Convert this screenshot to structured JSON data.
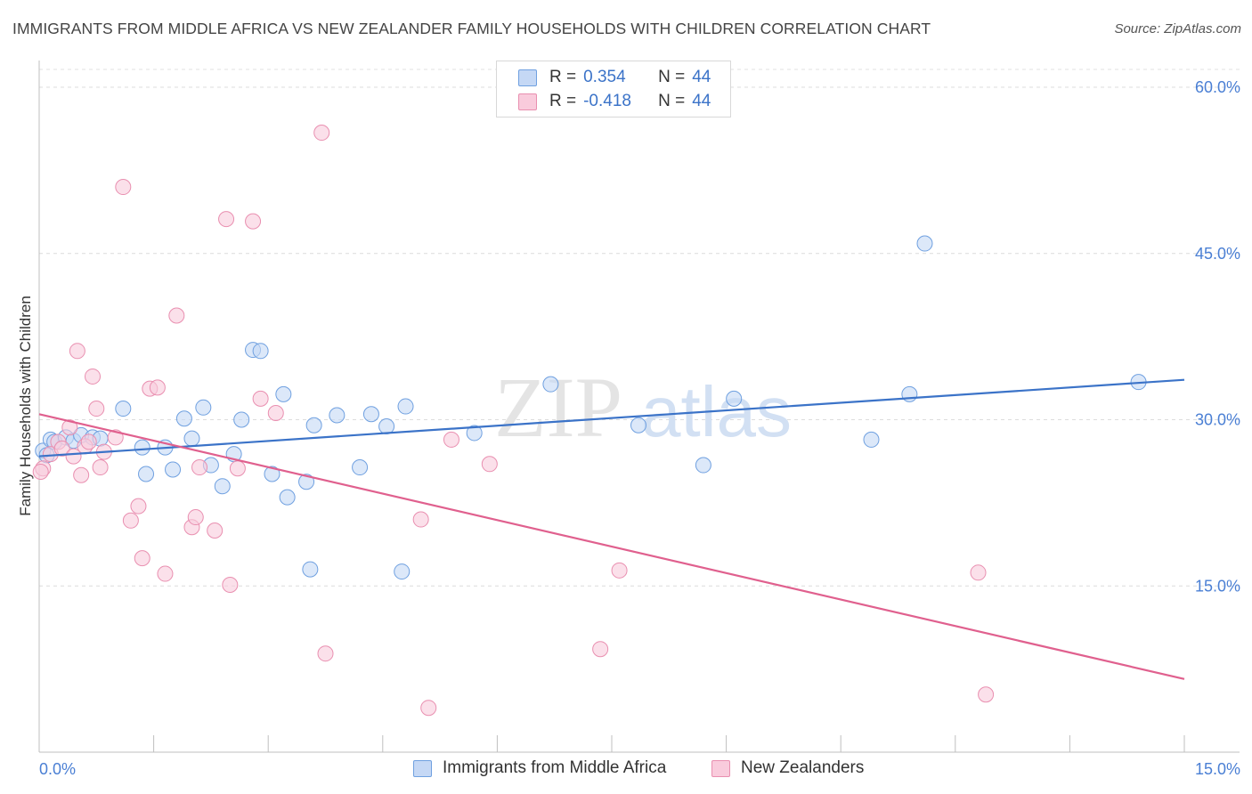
{
  "title": "IMMIGRANTS FROM MIDDLE AFRICA VS NEW ZEALANDER FAMILY HOUSEHOLDS WITH CHILDREN CORRELATION CHART",
  "source": "Source: ZipAtlas.com",
  "watermark": {
    "zip": "ZIP",
    "atlas": "atlas"
  },
  "legend": {
    "r_label": "R =",
    "n_label": "N =",
    "rows": [
      {
        "r": "0.354",
        "n": "44",
        "color": "#6fa0e0",
        "fill": "#c5d8f5"
      },
      {
        "r": "-0.418",
        "n": "44",
        "color": "#e98fb0",
        "fill": "#f9cbdc"
      }
    ]
  },
  "bottom_legend": [
    {
      "label": "Immigrants from Middle Africa",
      "color": "#6fa0e0",
      "fill": "#c5d8f5"
    },
    {
      "label": "New Zealanders",
      "color": "#e98fb0",
      "fill": "#f9cbdc"
    }
  ],
  "chart_data": {
    "type": "scatter",
    "title": "IMMIGRANTS FROM MIDDLE AFRICA VS NEW ZEALANDER FAMILY HOUSEHOLDS WITH CHILDREN CORRELATION CHART",
    "xlabel": "",
    "ylabel": "Family Households with Children",
    "xlim": [
      0,
      15
    ],
    "ylim": [
      0,
      60
    ],
    "x_tick_labels": [
      {
        "value": 0,
        "label": "0.0%"
      },
      {
        "value": 15,
        "label": "15.0%"
      }
    ],
    "y_tick_labels": [
      {
        "value": 15,
        "label": "15.0%"
      },
      {
        "value": 30,
        "label": "30.0%"
      },
      {
        "value": 45,
        "label": "45.0%"
      },
      {
        "value": 60,
        "label": "60.0%"
      }
    ],
    "grid": true,
    "legend_position": "top-center",
    "series": [
      {
        "name": "Immigrants from Middle Africa",
        "color": "#6fa0e0",
        "fill": "#c5d8f5",
        "trend": {
          "x": [
            0,
            15
          ],
          "y": [
            26.7,
            33.6
          ]
        },
        "points": [
          [
            0.05,
            27.2
          ],
          [
            0.1,
            26.8
          ],
          [
            0.15,
            28.2
          ],
          [
            0.2,
            28.0
          ],
          [
            0.35,
            28.4
          ],
          [
            0.45,
            28.1
          ],
          [
            0.55,
            28.6
          ],
          [
            0.7,
            28.4
          ],
          [
            0.8,
            28.3
          ],
          [
            1.1,
            31.0
          ],
          [
            1.35,
            27.5
          ],
          [
            1.4,
            25.1
          ],
          [
            1.65,
            27.5
          ],
          [
            1.75,
            25.5
          ],
          [
            1.9,
            30.1
          ],
          [
            2.0,
            28.3
          ],
          [
            2.15,
            31.1
          ],
          [
            2.25,
            25.9
          ],
          [
            2.4,
            24.0
          ],
          [
            2.55,
            26.9
          ],
          [
            2.65,
            30.0
          ],
          [
            2.8,
            36.3
          ],
          [
            2.9,
            36.2
          ],
          [
            3.05,
            25.1
          ],
          [
            3.2,
            32.3
          ],
          [
            3.25,
            23.0
          ],
          [
            3.5,
            24.4
          ],
          [
            3.55,
            16.5
          ],
          [
            3.6,
            29.5
          ],
          [
            3.9,
            30.4
          ],
          [
            4.2,
            25.7
          ],
          [
            4.35,
            30.5
          ],
          [
            4.55,
            29.4
          ],
          [
            4.75,
            16.3
          ],
          [
            4.8,
            31.2
          ],
          [
            5.7,
            28.8
          ],
          [
            6.7,
            33.2
          ],
          [
            7.85,
            29.5
          ],
          [
            8.7,
            25.9
          ],
          [
            9.1,
            31.9
          ],
          [
            10.9,
            28.2
          ],
          [
            11.4,
            32.3
          ],
          [
            11.6,
            45.9
          ],
          [
            14.4,
            33.4
          ]
        ]
      },
      {
        "name": "New Zealanders",
        "color": "#e98fb0",
        "fill": "#f9cbdc",
        "trend": {
          "x": [
            0,
            15
          ],
          "y": [
            30.5,
            6.6
          ]
        },
        "points": [
          [
            0.05,
            25.6
          ],
          [
            0.15,
            26.9
          ],
          [
            0.25,
            28.0
          ],
          [
            0.3,
            27.4
          ],
          [
            0.4,
            29.3
          ],
          [
            0.45,
            26.7
          ],
          [
            0.5,
            36.2
          ],
          [
            0.55,
            25.0
          ],
          [
            0.6,
            27.6
          ],
          [
            0.65,
            28.0
          ],
          [
            0.7,
            33.9
          ],
          [
            0.75,
            31.0
          ],
          [
            0.8,
            25.7
          ],
          [
            0.85,
            27.1
          ],
          [
            1.0,
            28.4
          ],
          [
            1.1,
            51.0
          ],
          [
            1.2,
            20.9
          ],
          [
            1.3,
            22.2
          ],
          [
            1.35,
            17.5
          ],
          [
            1.45,
            32.8
          ],
          [
            1.55,
            32.9
          ],
          [
            1.65,
            16.1
          ],
          [
            1.8,
            39.4
          ],
          [
            2.0,
            20.3
          ],
          [
            2.05,
            21.2
          ],
          [
            2.1,
            25.7
          ],
          [
            2.3,
            20.0
          ],
          [
            2.45,
            48.1
          ],
          [
            2.5,
            15.1
          ],
          [
            2.6,
            25.6
          ],
          [
            2.8,
            47.9
          ],
          [
            2.9,
            31.9
          ],
          [
            3.1,
            30.6
          ],
          [
            3.7,
            55.9
          ],
          [
            3.75,
            8.9
          ],
          [
            5.0,
            21.0
          ],
          [
            5.1,
            4.0
          ],
          [
            5.4,
            28.2
          ],
          [
            5.9,
            26.0
          ],
          [
            7.35,
            9.3
          ],
          [
            7.6,
            16.4
          ],
          [
            12.3,
            16.2
          ],
          [
            12.4,
            5.2
          ],
          [
            0.02,
            25.3
          ]
        ]
      }
    ]
  }
}
